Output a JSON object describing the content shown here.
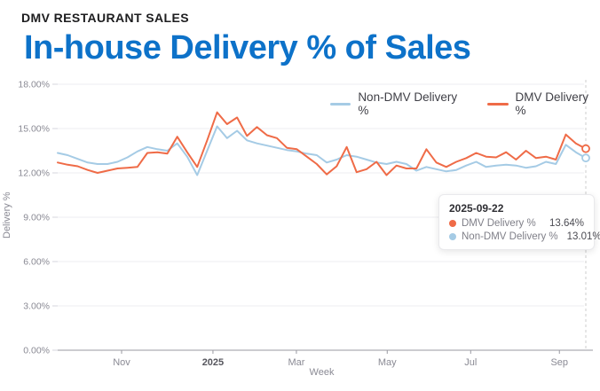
{
  "header": {
    "eyebrow": "DMV RESTAURANT SALES",
    "title": "In-house Delivery % of Sales"
  },
  "colors": {
    "title": "#0d72c9",
    "eyebrow": "#1d1d1f",
    "dmv_line": "#ef6b47",
    "non_dmv_line": "#a5cbe5",
    "grid": "#ededf0",
    "axis_line": "#9a9aa2",
    "tick_text": "#8a8a94",
    "bold_tick_text": "#55555c",
    "crosshair": "#cccccc"
  },
  "legend": {
    "items": [
      {
        "label": "Non-DMV Delivery %",
        "color": "#a5cbe5"
      },
      {
        "label": "DMV Delivery %",
        "color": "#ef6b47"
      }
    ]
  },
  "tooltip": {
    "date": "2025-09-22",
    "rows": [
      {
        "label": "DMV Delivery %",
        "value": "13.64%",
        "color": "#ef6b47"
      },
      {
        "label": "Non-DMV Delivery %",
        "value": "13.01%",
        "color": "#a5cbe5"
      }
    ]
  },
  "chart_data": {
    "type": "line",
    "title": "In-house Delivery % of Sales",
    "xlabel": "Week",
    "ylabel": "Delivery %",
    "ylim": [
      0,
      18
    ],
    "grid": "horizontal",
    "legend_position": "top",
    "y_ticks": [
      "0.00%",
      "3.00%",
      "6.00%",
      "9.00%",
      "12.00%",
      "15.00%",
      "18.00%"
    ],
    "x_ticks": [
      {
        "label": "Nov",
        "pos": 0.121,
        "bold": false
      },
      {
        "label": "2025",
        "pos": 0.294,
        "bold": true
      },
      {
        "label": "Mar",
        "pos": 0.452,
        "bold": false
      },
      {
        "label": "May",
        "pos": 0.624,
        "bold": false
      },
      {
        "label": "Jul",
        "pos": 0.782,
        "bold": false
      },
      {
        "label": "Sep",
        "pos": 0.95,
        "bold": false
      }
    ],
    "x": [
      "2024-09-16",
      "2024-09-23",
      "2024-09-30",
      "2024-10-07",
      "2024-10-14",
      "2024-10-21",
      "2024-10-28",
      "2024-11-04",
      "2024-11-11",
      "2024-11-18",
      "2024-11-25",
      "2024-12-02",
      "2024-12-09",
      "2024-12-16",
      "2024-12-23",
      "2024-12-30",
      "2025-01-06",
      "2025-01-13",
      "2025-01-20",
      "2025-01-27",
      "2025-02-03",
      "2025-02-10",
      "2025-02-17",
      "2025-02-24",
      "2025-03-03",
      "2025-03-10",
      "2025-03-17",
      "2025-03-24",
      "2025-03-31",
      "2025-04-07",
      "2025-04-14",
      "2025-04-21",
      "2025-04-28",
      "2025-05-05",
      "2025-05-12",
      "2025-05-19",
      "2025-05-26",
      "2025-06-02",
      "2025-06-09",
      "2025-06-16",
      "2025-06-23",
      "2025-06-30",
      "2025-07-07",
      "2025-07-14",
      "2025-07-21",
      "2025-07-28",
      "2025-08-04",
      "2025-08-11",
      "2025-08-18",
      "2025-08-25",
      "2025-09-01",
      "2025-09-08",
      "2025-09-15",
      "2025-09-22"
    ],
    "series": [
      {
        "name": "Non-DMV Delivery %",
        "color": "#a5cbe5",
        "values": [
          13.35,
          13.2,
          12.95,
          12.7,
          12.6,
          12.6,
          12.75,
          13.05,
          13.45,
          13.75,
          13.6,
          13.5,
          14.0,
          13.1,
          11.85,
          13.5,
          15.15,
          14.35,
          14.85,
          14.2,
          14.0,
          13.85,
          13.7,
          13.55,
          13.45,
          13.3,
          13.2,
          12.7,
          12.9,
          13.2,
          13.1,
          12.9,
          12.7,
          12.6,
          12.75,
          12.6,
          12.15,
          12.4,
          12.25,
          12.1,
          12.2,
          12.5,
          12.75,
          12.4,
          12.5,
          12.55,
          12.5,
          12.35,
          12.45,
          12.75,
          12.6,
          13.9,
          13.4,
          13.01
        ]
      },
      {
        "name": "DMV Delivery %",
        "color": "#ef6b47",
        "values": [
          12.7,
          12.55,
          12.45,
          12.2,
          12.0,
          12.15,
          12.3,
          12.35,
          12.4,
          13.35,
          13.4,
          13.3,
          14.45,
          13.4,
          12.4,
          14.2,
          16.1,
          15.3,
          15.75,
          14.5,
          15.1,
          14.55,
          14.35,
          13.7,
          13.6,
          13.1,
          12.6,
          11.9,
          12.45,
          13.75,
          12.05,
          12.25,
          12.75,
          11.85,
          12.5,
          12.3,
          12.3,
          13.6,
          12.7,
          12.4,
          12.75,
          13.0,
          13.35,
          13.1,
          13.05,
          13.4,
          12.9,
          13.5,
          13.0,
          13.1,
          12.9,
          14.6,
          14.0,
          13.64
        ]
      }
    ],
    "end_markers": true
  }
}
